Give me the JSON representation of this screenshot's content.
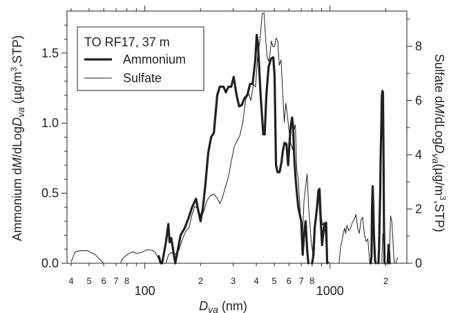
{
  "chart_data": {
    "type": "line",
    "x_scale": "log",
    "xlim": [
      38,
      2600
    ],
    "ylim_left": [
      0,
      1.8
    ],
    "ylim_right": [
      0,
      9.3
    ],
    "xlabel": "D_va (nm)",
    "xlabel_main": "D",
    "xlabel_sub": "va",
    "xlabel_unit": " (nm)",
    "ylabel_left": "Ammonium dM/dLogD_va (µg/m³,STP)",
    "ylabel_left_parts": [
      "Ammonium d",
      "M",
      "/dLog",
      "D",
      "va",
      " (µg/m",
      "3",
      ",STP)"
    ],
    "ylabel_right": "Sulfate dM/dLogD_va (µg/m³,STP)",
    "ylabel_right_parts": [
      "Sulfate d",
      "M",
      "/dLog",
      "D",
      "va",
      "(µg/m",
      "3",
      ",STP)"
    ],
    "x_ticks_major": [
      {
        "value": 100,
        "label": "100"
      },
      {
        "value": 1000,
        "label": "1000"
      }
    ],
    "x_ticks_minor": [
      {
        "value": 40,
        "label": "4"
      },
      {
        "value": 50,
        "label": "5"
      },
      {
        "value": 60,
        "label": "6"
      },
      {
        "value": 70,
        "label": "7"
      },
      {
        "value": 80,
        "label": "8"
      },
      {
        "value": 200,
        "label": "2"
      },
      {
        "value": 300,
        "label": "3"
      },
      {
        "value": 400,
        "label": "4"
      },
      {
        "value": 500,
        "label": "5"
      },
      {
        "value": 600,
        "label": "6"
      },
      {
        "value": 700,
        "label": "7"
      },
      {
        "value": 800,
        "label": "8"
      },
      {
        "value": 2000,
        "label": "2"
      }
    ],
    "y_ticks_left": [
      {
        "value": 0.0,
        "label": "0.0"
      },
      {
        "value": 0.5,
        "label": "0.5"
      },
      {
        "value": 1.0,
        "label": "1.0"
      },
      {
        "value": 1.5,
        "label": "1.5"
      }
    ],
    "y_ticks_right": [
      {
        "value": 0,
        "label": "0"
      },
      {
        "value": 2,
        "label": "2"
      },
      {
        "value": 4,
        "label": "4"
      },
      {
        "value": 6,
        "label": "6"
      },
      {
        "value": 8,
        "label": "8"
      }
    ],
    "legend": {
      "title": "TO RF17, 37 m",
      "position": "top-left",
      "entries": [
        "Ammonium",
        "Sulfate"
      ]
    },
    "grid": false,
    "series": [
      {
        "name": "Ammonium",
        "axis": "left",
        "color": "#231f20",
        "style": "thick",
        "segments": [
          [
            [
              119,
              0.05
            ],
            [
              122,
              0.0
            ]
          ],
          [
            [
              124,
              0.0
            ],
            [
              130,
              0.15
            ],
            [
              134,
              0.28
            ],
            [
              136,
              0.15
            ],
            [
              139,
              0.18
            ],
            [
              142,
              0.1
            ],
            [
              146,
              0.0
            ],
            [
              151,
              0.1
            ],
            [
              156,
              0.2
            ],
            [
              164,
              0.25
            ],
            [
              172,
              0.32
            ],
            [
              180,
              0.4
            ],
            [
              189,
              0.46
            ],
            [
              194,
              0.38
            ],
            [
              200,
              0.3
            ],
            [
              206,
              0.4
            ],
            [
              212,
              0.55
            ],
            [
              220,
              0.79
            ],
            [
              228,
              0.9
            ],
            [
              236,
              0.93
            ],
            [
              246,
              1.2
            ],
            [
              254,
              1.26
            ],
            [
              266,
              1.26
            ],
            [
              274,
              1.22
            ],
            [
              283,
              1.26
            ],
            [
              293,
              1.26
            ],
            [
              302,
              1.33
            ],
            [
              313,
              1.2
            ],
            [
              323,
              1.12
            ],
            [
              334,
              1.13
            ],
            [
              346,
              1.18
            ],
            [
              358,
              1.2
            ],
            [
              370,
              1.28
            ],
            [
              382,
              1.28
            ],
            [
              395,
              1.45
            ],
            [
              402,
              1.63
            ],
            [
              408,
              1.57
            ],
            [
              422,
              1.2
            ],
            [
              436,
              0.92
            ],
            [
              444,
              0.92
            ],
            [
              453,
              1.2
            ],
            [
              466,
              1.4
            ],
            [
              480,
              1.46
            ],
            [
              494,
              1.47
            ],
            [
              502,
              1.34
            ],
            [
              511,
              0.7
            ],
            [
              521,
              0.65
            ],
            [
              534,
              0.65
            ],
            [
              547,
              0.72
            ],
            [
              556,
              0.8
            ],
            [
              568,
              0.86
            ],
            [
              582,
              0.85
            ],
            [
              594,
              0.7
            ],
            [
              604,
              0.85
            ],
            [
              614,
              0.98
            ],
            [
              624,
              1.04
            ],
            [
              632,
              0.98
            ],
            [
              641,
              0.75
            ],
            [
              652,
              0.6
            ],
            [
              665,
              0.48
            ],
            [
              674,
              0.4
            ],
            [
              686,
              0.35
            ],
            [
              699,
              0.3
            ],
            [
              712,
              0.06
            ],
            [
              724,
              0.2
            ],
            [
              738,
              0.3
            ],
            [
              752,
              0.1
            ],
            [
              764,
              0.0
            ]
          ],
          [
            [
              800,
              0.0
            ],
            [
              812,
              0.05
            ],
            [
              826,
              0.25
            ],
            [
              838,
              0.32
            ],
            [
              851,
              0.4
            ],
            [
              866,
              0.52
            ],
            [
              878,
              0.53
            ],
            [
              892,
              0.3
            ],
            [
              906,
              0.13
            ],
            [
              922,
              0.23
            ],
            [
              936,
              0.28
            ],
            [
              953,
              0.29
            ],
            [
              965,
              0.0
            ]
          ],
          [
            [
              1660,
              0.0
            ],
            [
              1675,
              0.05
            ],
            [
              1686,
              0.4
            ],
            [
              1700,
              0.55
            ],
            [
              1712,
              0.42
            ],
            [
              1726,
              0.2
            ],
            [
              1740,
              0.1
            ],
            [
              1752,
              0.02
            ],
            [
              1765,
              0.0
            ]
          ],
          [
            [
              1825,
              0.0
            ],
            [
              1840,
              0.1
            ],
            [
              1852,
              0.3
            ],
            [
              1866,
              0.5
            ],
            [
              1876,
              0.75
            ],
            [
              1890,
              0.95
            ],
            [
              1905,
              1.2
            ],
            [
              1920,
              1.23
            ],
            [
              1932,
              1.22
            ],
            [
              1944,
              0.85
            ],
            [
              1956,
              0.25
            ],
            [
              1970,
              0.0
            ]
          ],
          [
            [
              2050,
              0.0
            ],
            [
              2070,
              0.13
            ],
            [
              2085,
              0.08
            ],
            [
              2100,
              0.0
            ]
          ]
        ]
      },
      {
        "name": "Sulfate",
        "axis": "right",
        "color": "#231f20",
        "style": "thin",
        "segments": [
          [
            [
              40,
              0.05
            ],
            [
              42,
              0.42
            ],
            [
              45,
              0.47
            ],
            [
              49,
              0.46
            ],
            [
              54,
              0.32
            ],
            [
              56,
              0.2
            ],
            [
              60,
              0.0
            ]
          ],
          [
            [
              74,
              0.0
            ],
            [
              75,
              0.12
            ],
            [
              78,
              0.25
            ],
            [
              82,
              0.36
            ],
            [
              86,
              0.42
            ],
            [
              90,
              0.36
            ],
            [
              96,
              0.4
            ],
            [
              103,
              0.5
            ],
            [
              110,
              0.48
            ],
            [
              114,
              0.4
            ],
            [
              118,
              0.2
            ],
            [
              121,
              0.0
            ]
          ],
          [
            [
              130,
              0.0
            ],
            [
              134,
              0.3
            ],
            [
              139,
              0.4
            ],
            [
              144,
              0.3
            ],
            [
              149,
              0.4
            ],
            [
              153,
              0.5
            ],
            [
              158,
              0.8
            ],
            [
              162,
              1.0
            ],
            [
              167,
              1.2
            ],
            [
              173,
              1.3
            ],
            [
              180,
              1.8
            ],
            [
              186,
              2.1
            ],
            [
              194,
              2.0
            ],
            [
              202,
              1.7
            ],
            [
              209,
              1.95
            ],
            [
              216,
              2.3
            ],
            [
              226,
              2.5
            ],
            [
              236,
              2.55
            ],
            [
              246,
              2.4
            ],
            [
              254,
              2.2
            ],
            [
              262,
              2.4
            ],
            [
              272,
              2.8
            ],
            [
              283,
              3.2
            ],
            [
              293,
              3.75
            ],
            [
              304,
              4.3
            ],
            [
              314,
              4.5
            ],
            [
              326,
              4.7
            ],
            [
              338,
              5.2
            ],
            [
              350,
              6.0
            ],
            [
              362,
              6.3
            ],
            [
              374,
              6.0
            ],
            [
              386,
              6.6
            ],
            [
              396,
              6.5
            ],
            [
              406,
              7.6
            ],
            [
              418,
              8.2
            ],
            [
              430,
              9.2
            ],
            [
              440,
              9.23
            ],
            [
              450,
              8.2
            ],
            [
              458,
              7.6
            ],
            [
              466,
              7.45
            ],
            [
              474,
              7.7
            ],
            [
              482,
              8.2
            ],
            [
              492,
              7.98
            ],
            [
              502,
              8.0
            ],
            [
              512,
              8.3
            ],
            [
              522,
              8.2
            ],
            [
              532,
              7.3
            ],
            [
              544,
              7.5
            ],
            [
              555,
              6.3
            ],
            [
              566,
              5.2
            ],
            [
              578,
              5.9
            ],
            [
              590,
              5.4
            ],
            [
              602,
              4.8
            ],
            [
              615,
              4.4
            ],
            [
              628,
              4.2
            ],
            [
              638,
              4.9
            ],
            [
              650,
              5.1
            ],
            [
              662,
              3.4
            ],
            [
              674,
              3.1
            ],
            [
              686,
              2.2
            ],
            [
              698,
              1.5
            ],
            [
              710,
              1.0
            ],
            [
              724,
              2.3
            ],
            [
              738,
              2.8
            ],
            [
              752,
              3.3
            ],
            [
              766,
              2.1
            ],
            [
              780,
              1.4
            ],
            [
              792,
              0.8
            ],
            [
              806,
              0.4
            ],
            [
              822,
              0.3
            ],
            [
              836,
              1.5
            ],
            [
              848,
              2.0
            ],
            [
              860,
              2.4
            ],
            [
              872,
              2.3
            ],
            [
              884,
              1.5
            ],
            [
              898,
              1.7
            ],
            [
              912,
              1.4
            ],
            [
              928,
              1.5
            ],
            [
              944,
              1.1
            ],
            [
              958,
              0.3
            ],
            [
              972,
              0.1
            ],
            [
              988,
              0.0
            ]
          ],
          [
            [
              1120,
              0.0
            ],
            [
              1140,
              0.6
            ],
            [
              1166,
              0.9
            ],
            [
              1180,
              1.1
            ],
            [
              1200,
              1.3
            ],
            [
              1215,
              1.1
            ],
            [
              1235,
              1.4
            ],
            [
              1260,
              1.2
            ],
            [
              1290,
              1.3
            ],
            [
              1320,
              1.5
            ],
            [
              1350,
              1.6
            ],
            [
              1380,
              1.8
            ],
            [
              1410,
              1.3
            ],
            [
              1440,
              1.1
            ],
            [
              1470,
              1.6
            ],
            [
              1500,
              1.7
            ],
            [
              1530,
              1.1
            ],
            [
              1565,
              0.8
            ],
            [
              1600,
              0.9
            ],
            [
              1640,
              0.0
            ]
          ],
          [
            [
              1905,
              0.0
            ],
            [
              1915,
              0.6
            ],
            [
              1930,
              1.1
            ],
            [
              1945,
              1.0
            ],
            [
              1960,
              0.4
            ],
            [
              1970,
              0.0
            ]
          ],
          [
            [
              2080,
              0.0
            ],
            [
              2100,
              0.6
            ],
            [
              2125,
              1.75
            ],
            [
              2160,
              1.5
            ],
            [
              2190,
              0.8
            ],
            [
              2210,
              0.2
            ],
            [
              2230,
              0.0
            ]
          ],
          [
            [
              2260,
              0.0
            ],
            [
              2290,
              0.1
            ],
            [
              2320,
              0.2
            ]
          ]
        ]
      }
    ]
  }
}
